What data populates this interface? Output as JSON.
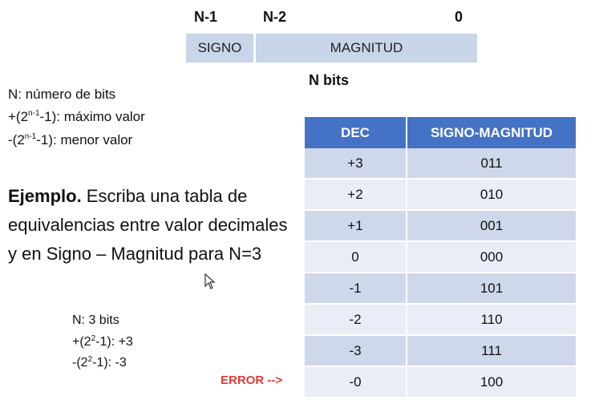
{
  "header": {
    "bit_labels": [
      "N-1",
      "N-2",
      "0"
    ],
    "fields": [
      "SIGNO",
      "MAGNITUD"
    ],
    "caption": "N bits"
  },
  "info": {
    "line1": "N: número de bits",
    "line2_pre": "+(2",
    "line2_sup": "n-1",
    "line2_post": "-1): máximo valor",
    "line3_pre": "-(2",
    "line3_sup": "n-1",
    "line3_post": "-1): menor valor"
  },
  "example": {
    "bold": "Ejemplo.",
    "text": " Escriba una tabla de equivalencias entre valor decimales y en Signo – Magnitud para N=3"
  },
  "calc": {
    "line1": "N: 3 bits",
    "line2_pre": "+(2",
    "line2_sup": "2",
    "line2_post": "-1): +3",
    "line3_pre": "-(2",
    "line3_sup": "2",
    "line3_post": "-1): -3"
  },
  "error_label": "ERROR -->",
  "table": {
    "headers": [
      "DEC",
      "SIGNO-MAGNITUD"
    ],
    "rows": [
      [
        "+3",
        "011"
      ],
      [
        "+2",
        "010"
      ],
      [
        "+1",
        "001"
      ],
      [
        "0",
        "000"
      ],
      [
        "-1",
        "101"
      ],
      [
        "-2",
        "110"
      ],
      [
        "-3",
        "111"
      ],
      [
        "-0",
        "100"
      ]
    ]
  },
  "colors": {
    "header_bg": "#4472c4",
    "row_dark": "#cfd8ea",
    "row_light": "#e8edf6",
    "field_bar": "#c9d5e8",
    "error": "#e53935"
  }
}
